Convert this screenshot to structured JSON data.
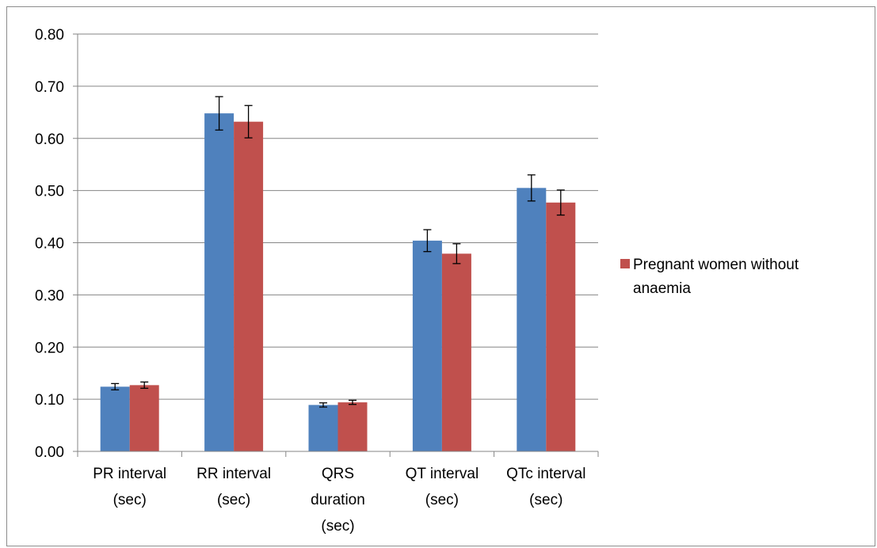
{
  "chart_data": {
    "type": "bar",
    "categories": [
      [
        "PR interval",
        "(sec)"
      ],
      [
        "RR interval",
        "(sec)"
      ],
      [
        "QRS",
        "duration",
        "(sec)"
      ],
      [
        "QT interval",
        "(sec)"
      ],
      [
        "QTc interval",
        "(sec)"
      ]
    ],
    "series": [
      {
        "values": [
          0.124,
          0.648,
          0.089,
          0.404,
          0.505
        ],
        "errors": [
          0.006,
          0.032,
          0.004,
          0.021,
          0.025
        ],
        "color": "#4f81bd"
      },
      {
        "name": "Pregnant women without anaemia",
        "values": [
          0.127,
          0.632,
          0.094,
          0.379,
          0.477
        ],
        "errors": [
          0.006,
          0.031,
          0.004,
          0.019,
          0.024
        ],
        "color": "#c0504d"
      }
    ],
    "ylim": [
      0,
      0.8
    ],
    "yticks": [
      "0.00",
      "0.10",
      "0.20",
      "0.30",
      "0.40",
      "0.50",
      "0.60",
      "0.70",
      "0.80"
    ],
    "grid": true,
    "legend": {
      "placement": "right",
      "entries": [
        {
          "lines": [
            "Pregnant women without",
            "anaemia"
          ],
          "color": "#c0504d"
        }
      ]
    },
    "title": "",
    "xlabel": "",
    "ylabel": ""
  }
}
